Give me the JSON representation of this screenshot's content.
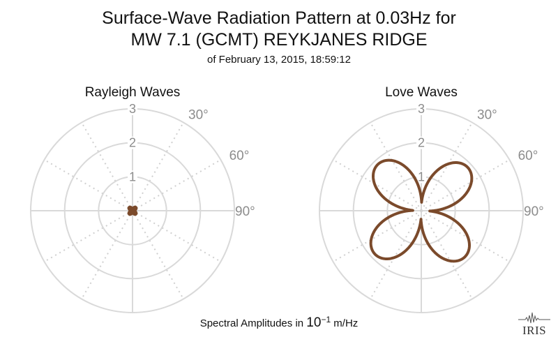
{
  "page": {
    "title_line1": "Surface-Wave Radiation Pattern at 0.03Hz for",
    "title_line2": "MW 7.1 (GCMT) REYKJANES RIDGE",
    "subtitle": "of February 13, 2015, 18:59:12",
    "footer_prefix": "Spectral Amplitudes in",
    "footer_base": "10",
    "footer_exponent": "−1",
    "footer_unit": "m/Hz",
    "logo_text": "IRIS"
  },
  "colors": {
    "pattern": "#7b4a2b",
    "grid": "#d9d9d9",
    "tick_label": "#8c8c8c"
  },
  "chart_data": [
    {
      "type": "polar",
      "title": "Rayleigh Waves",
      "r_range": [
        0,
        3
      ],
      "r_ticks": [
        1,
        2,
        3
      ],
      "angle_tick_labels": [
        "30°",
        "60°",
        "90°"
      ],
      "grid": true,
      "pattern": {
        "A": 0.12,
        "B": 0.02,
        "rotation_deg": 0
      }
    },
    {
      "type": "polar",
      "title": "Love Waves",
      "r_range": [
        0,
        3
      ],
      "r_ticks": [
        1,
        2,
        3
      ],
      "angle_tick_labels": [
        "30°",
        "60°",
        "90°"
      ],
      "grid": true,
      "pattern": {
        "A": 1.62,
        "B": 0.25,
        "rotation_deg": 2
      }
    }
  ]
}
